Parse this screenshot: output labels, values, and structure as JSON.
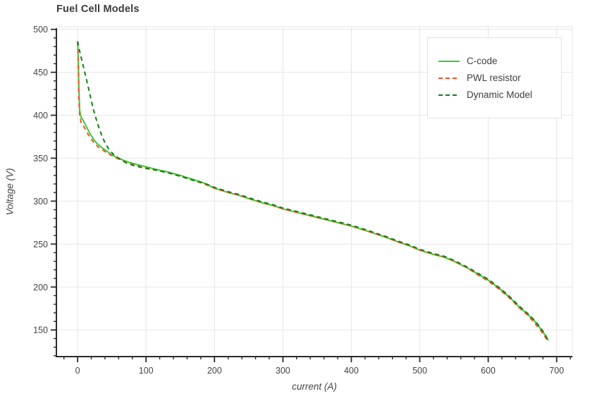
{
  "chart_data": {
    "type": "line",
    "title": "Fuel Cell Models",
    "xlabel": "current (A)",
    "ylabel": "Voltage (V)",
    "xlim": [
      -31,
      723
    ],
    "ylim": [
      119,
      503
    ],
    "x_ticks": [
      0,
      100,
      200,
      300,
      400,
      500,
      600,
      700
    ],
    "y_ticks": [
      150,
      200,
      250,
      300,
      350,
      400,
      450,
      500
    ],
    "x_minor_step": 20,
    "y_minor_step": 10,
    "grid": true,
    "legend_position": "top-right",
    "series": [
      {
        "name": "C-code",
        "color": "#33cc33",
        "dash": "solid",
        "points": [
          [
            0,
            486
          ],
          [
            1,
            464
          ],
          [
            2,
            428
          ],
          [
            3,
            406
          ],
          [
            5,
            398
          ],
          [
            8,
            394
          ],
          [
            12,
            388
          ],
          [
            16,
            382
          ],
          [
            20,
            376
          ],
          [
            25,
            370
          ],
          [
            30,
            366
          ],
          [
            36,
            362
          ],
          [
            43,
            358
          ],
          [
            50,
            354
          ],
          [
            60,
            350
          ],
          [
            72,
            346
          ],
          [
            85,
            343
          ],
          [
            100,
            340
          ],
          [
            115,
            337
          ],
          [
            132,
            334
          ],
          [
            150,
            330
          ],
          [
            170,
            325
          ],
          [
            185,
            321
          ],
          [
            200,
            315
          ],
          [
            220,
            310
          ],
          [
            235,
            307
          ],
          [
            250,
            303
          ],
          [
            270,
            298
          ],
          [
            285,
            295
          ],
          [
            300,
            291
          ],
          [
            320,
            287
          ],
          [
            335,
            284
          ],
          [
            350,
            281
          ],
          [
            370,
            277
          ],
          [
            385,
            274
          ],
          [
            400,
            271
          ],
          [
            420,
            266
          ],
          [
            435,
            262
          ],
          [
            450,
            258
          ],
          [
            470,
            252
          ],
          [
            485,
            248
          ],
          [
            500,
            243
          ],
          [
            520,
            238
          ],
          [
            535,
            235
          ],
          [
            550,
            230
          ],
          [
            570,
            222
          ],
          [
            585,
            215
          ],
          [
            600,
            208
          ],
          [
            615,
            199
          ],
          [
            630,
            189
          ],
          [
            645,
            177
          ],
          [
            658,
            168
          ],
          [
            668,
            160
          ],
          [
            676,
            152
          ],
          [
            683,
            144
          ],
          [
            688,
            138
          ]
        ]
      },
      {
        "name": "PWL resistor",
        "color": "#ff4e26",
        "dash": "dash",
        "points": [
          [
            0,
            486
          ],
          [
            1,
            458
          ],
          [
            2,
            420
          ],
          [
            3,
            400
          ],
          [
            5,
            392
          ],
          [
            8,
            388
          ],
          [
            12,
            383
          ],
          [
            16,
            377
          ],
          [
            20,
            372
          ],
          [
            25,
            367
          ],
          [
            30,
            363
          ],
          [
            36,
            360
          ],
          [
            43,
            356
          ],
          [
            50,
            353
          ],
          [
            60,
            349
          ],
          [
            72,
            345
          ],
          [
            85,
            342
          ],
          [
            100,
            339
          ],
          [
            115,
            336
          ],
          [
            132,
            333
          ],
          [
            150,
            329
          ],
          [
            170,
            324
          ],
          [
            185,
            320
          ],
          [
            200,
            315
          ],
          [
            220,
            310
          ],
          [
            235,
            307
          ],
          [
            250,
            303
          ],
          [
            270,
            298
          ],
          [
            285,
            295
          ],
          [
            300,
            291
          ],
          [
            320,
            287
          ],
          [
            335,
            284
          ],
          [
            350,
            281
          ],
          [
            370,
            277
          ],
          [
            385,
            274
          ],
          [
            400,
            271
          ],
          [
            420,
            266
          ],
          [
            435,
            262
          ],
          [
            450,
            258
          ],
          [
            470,
            252
          ],
          [
            485,
            248
          ],
          [
            500,
            243
          ],
          [
            520,
            238
          ],
          [
            535,
            235
          ],
          [
            550,
            230
          ],
          [
            570,
            222
          ],
          [
            585,
            214
          ],
          [
            600,
            207
          ],
          [
            615,
            198
          ],
          [
            630,
            188
          ],
          [
            645,
            176
          ],
          [
            658,
            167
          ],
          [
            668,
            158
          ],
          [
            676,
            150
          ],
          [
            683,
            142
          ],
          [
            688,
            136
          ]
        ]
      },
      {
        "name": "Dynamic Model",
        "color": "#118011",
        "dash": "dash",
        "points": [
          [
            0,
            486
          ],
          [
            2,
            478
          ],
          [
            5,
            468
          ],
          [
            8,
            458
          ],
          [
            11,
            448
          ],
          [
            14,
            438
          ],
          [
            17,
            428
          ],
          [
            20,
            417
          ],
          [
            23,
            407
          ],
          [
            27,
            396
          ],
          [
            31,
            386
          ],
          [
            35,
            377
          ],
          [
            40,
            368
          ],
          [
            46,
            360
          ],
          [
            53,
            354
          ],
          [
            62,
            349
          ],
          [
            72,
            344
          ],
          [
            84,
            341
          ],
          [
            100,
            338
          ],
          [
            115,
            336
          ],
          [
            132,
            333
          ],
          [
            150,
            329
          ],
          [
            170,
            324
          ],
          [
            185,
            321
          ],
          [
            200,
            316
          ],
          [
            220,
            311
          ],
          [
            235,
            308
          ],
          [
            250,
            304
          ],
          [
            270,
            299
          ],
          [
            285,
            296
          ],
          [
            300,
            292
          ],
          [
            320,
            288
          ],
          [
            335,
            285
          ],
          [
            350,
            282
          ],
          [
            370,
            278
          ],
          [
            385,
            275
          ],
          [
            400,
            272
          ],
          [
            420,
            267
          ],
          [
            435,
            263
          ],
          [
            450,
            259
          ],
          [
            470,
            253
          ],
          [
            485,
            249
          ],
          [
            500,
            244
          ],
          [
            520,
            239
          ],
          [
            535,
            236
          ],
          [
            550,
            231
          ],
          [
            570,
            223
          ],
          [
            585,
            216
          ],
          [
            600,
            209
          ],
          [
            615,
            200
          ],
          [
            630,
            190
          ],
          [
            645,
            178
          ],
          [
            658,
            169
          ],
          [
            668,
            161
          ],
          [
            676,
            153
          ],
          [
            683,
            145
          ],
          [
            688,
            137
          ]
        ]
      }
    ]
  },
  "colors": {
    "background": "#ffffff",
    "grid": "#e5e5e5",
    "plot_border": "#e5e5e5",
    "axis": "#2a2a2a",
    "tick_label": "#444444",
    "title": "#3a3a3a",
    "axis_title": "#444444",
    "legend_border": "#e2e2e2",
    "legend_text": "#3f3f3f"
  }
}
